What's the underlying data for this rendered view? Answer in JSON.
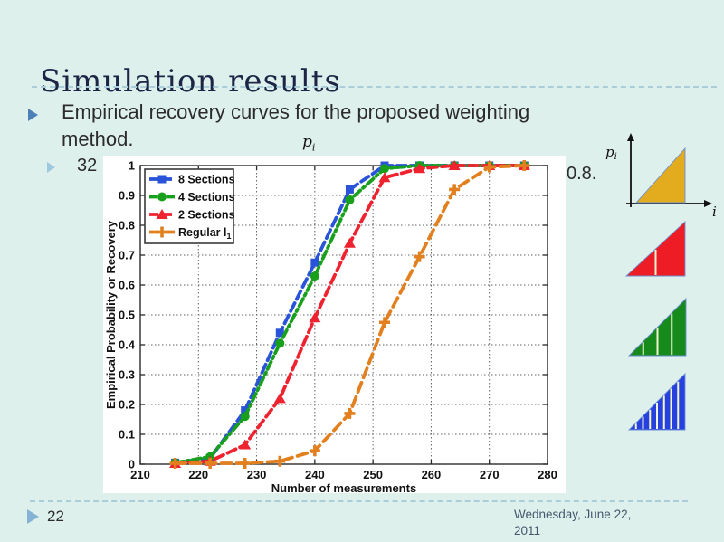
{
  "slide": {
    "title": "Simulation results",
    "bullet": {
      "line1": "Empirical recovery curves for the proposed weighting",
      "line2": "method."
    },
    "sub_bullet": {
      "left_text": "32",
      "right_text": "0.8."
    },
    "pi_annotation": {
      "base": "p",
      "sub": "i"
    }
  },
  "footer": {
    "page_number": "22",
    "date_line1": "Wednesday, June 22,",
    "date_line2": "2011"
  },
  "chart_data": {
    "type": "line",
    "title": "",
    "xlabel": "Number of measurements",
    "ylabel": "Empirical Probability or Recovery",
    "xlim": [
      210,
      280
    ],
    "ylim": [
      0,
      1
    ],
    "xticks": [
      210,
      220,
      230,
      240,
      250,
      260,
      270,
      280
    ],
    "yticks": [
      0,
      0.1,
      0.2,
      0.3,
      0.4,
      0.5,
      0.6,
      0.7,
      0.8,
      0.9,
      1
    ],
    "grid": true,
    "legend_position": "upper-left",
    "x": [
      216,
      222,
      228,
      234,
      240,
      246,
      252,
      258,
      264,
      270,
      276
    ],
    "series": [
      {
        "name": "8 Sections",
        "name_sub": "",
        "color": "#2953d8",
        "marker": "square",
        "dash": "dashed",
        "values": [
          0.005,
          0.02,
          0.18,
          0.44,
          0.675,
          0.92,
          1,
          1,
          1,
          1,
          1
        ]
      },
      {
        "name": "4 Sections",
        "name_sub": "",
        "color": "#18a01c",
        "marker": "circle",
        "dash": "dashdot",
        "values": [
          0.005,
          0.025,
          0.16,
          0.405,
          0.63,
          0.885,
          0.99,
          1,
          1,
          1,
          1
        ]
      },
      {
        "name": "2 Sections",
        "name_sub": "",
        "color": "#ef2330",
        "marker": "triangle",
        "dash": "dashed",
        "values": [
          0.003,
          0.01,
          0.065,
          0.22,
          0.49,
          0.74,
          0.96,
          0.99,
          1,
          1,
          1
        ]
      },
      {
        "name": "Regular l",
        "name_sub": "1",
        "color": "#e2801f",
        "marker": "plus",
        "dash": "dashed-long",
        "values": [
          0.003,
          0.003,
          0.003,
          0.01,
          0.045,
          0.17,
          0.475,
          0.695,
          0.92,
          0.995,
          1
        ]
      }
    ]
  },
  "diagram": {
    "y_axis_label": "p",
    "y_axis_label_sub": "i",
    "x_axis_label": "i",
    "divider_color": "#f0f6d2",
    "edge_color": "#6b8fd4",
    "triangles": [
      {
        "name": "regular-l1-profile",
        "color": "#e3ac1e",
        "sections": 1
      },
      {
        "name": "2-sections-profile",
        "color": "#ee1c25",
        "sections": 2
      },
      {
        "name": "4-sections-profile",
        "color": "#168a1a",
        "sections": 4
      },
      {
        "name": "8-sections-profile",
        "color": "#2741e0",
        "sections": 8
      }
    ]
  }
}
